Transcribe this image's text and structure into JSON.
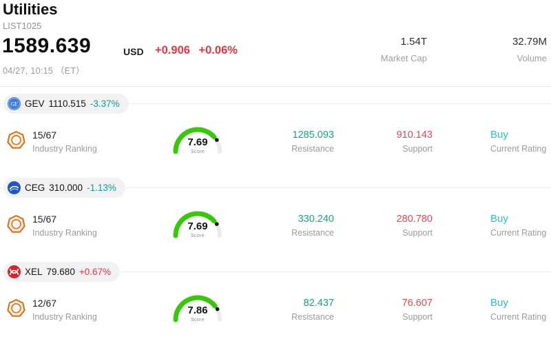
{
  "header": {
    "title": "Utilities",
    "list_id": "LIST1025",
    "price": "1589.639",
    "currency": "USD",
    "change": "+0.906 +0.06%",
    "datetime": "04/27, 10:15 （ET）",
    "market_cap_value": "1.54T",
    "market_cap_label": "Market Cap",
    "volume_value": "32.79M",
    "volume_label": "Volume"
  },
  "labels": {
    "industry_ranking": "Industry Ranking",
    "resistance": "Resistance",
    "support": "Support",
    "current_rating": "Current Rating",
    "score": "Score"
  },
  "colors": {
    "up": "#e5353f",
    "down": "#0f9d8c",
    "buy": "#2bbfc4",
    "resistance": "#1c9e8e",
    "support": "#e0484f",
    "gauge": "#38c70a",
    "gauge_track": "#ebebeb"
  },
  "stocks": [
    {
      "ticker": "GEV",
      "price": "1110.515",
      "change": "-3.37%",
      "change_color": "#0f9d8c",
      "logo": "gev-logo-icon",
      "ranking": "15/67",
      "score": "7.69",
      "score_value": 7.69,
      "resistance": "1285.093",
      "support": "910.143",
      "rating": "Buy"
    },
    {
      "ticker": "CEG",
      "price": "310.000",
      "change": "-1.13%",
      "change_color": "#0f9d8c",
      "logo": "ceg-logo-icon",
      "ranking": "15/67",
      "score": "7.69",
      "score_value": 7.69,
      "resistance": "330.240",
      "support": "280.780",
      "rating": "Buy"
    },
    {
      "ticker": "XEL",
      "price": "79.680",
      "change": "+0.67%",
      "change_color": "#e5353f",
      "logo": "xel-logo-icon",
      "ranking": "12/67",
      "score": "7.86",
      "score_value": 7.86,
      "resistance": "82.437",
      "support": "76.607",
      "rating": "Buy"
    }
  ]
}
